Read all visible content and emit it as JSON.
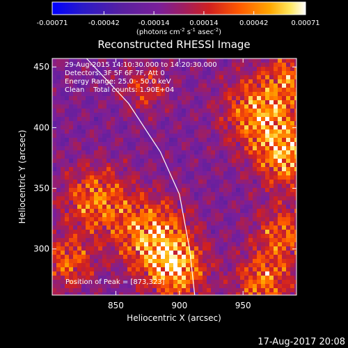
{
  "chart_data": {
    "type": "heatmap",
    "title": "Reconstructed RHESSI Image",
    "xlabel": "Heliocentric X (arcsec)",
    "ylabel": "Heliocentric Y (arcsec)",
    "xlim": [
      800,
      992
    ],
    "ylim": [
      262,
      457
    ],
    "x_ticks": [
      850,
      900,
      950
    ],
    "y_ticks": [
      300,
      350,
      400,
      450
    ],
    "colorbar": {
      "min": -0.00071,
      "max": 0.00071,
      "tick_values": [
        -0.00071,
        -0.00042,
        -0.00014,
        0.00014,
        0.00042,
        0.00071
      ],
      "tick_labels": [
        "-0.00071",
        "-0.00042",
        "-0.00014",
        "0.00014",
        "0.00042",
        "0.00071"
      ],
      "units_label": "(photons cm",
      "units_exp1": "-2",
      "units_mid": " s",
      "units_exp2": "-1",
      "units_mid2": " asec",
      "units_exp3": "-2",
      "units_end": ")",
      "colors": [
        "#0000ff",
        "#3a1aa8",
        "#5a20a0",
        "#7a1f9a",
        "#b01e40",
        "#e02010",
        "#ff6a00",
        "#ffb000",
        "#ffe860",
        "#ffffff"
      ]
    },
    "annotations": [
      "29-Aug-2015 14:10:30.000 to 14:20:30.000",
      "Detectors: 3F 5F 6F 7F, Att 0",
      "Energy Range: 25.0 - 50.0 keV",
      "Clean    Total counts: 1.90E+04"
    ],
    "peak_text": "Position of Peak = [873,323]",
    "peak": [
      873,
      323
    ],
    "limb_curve": [
      [
        827,
        457
      ],
      [
        860,
        420
      ],
      [
        885,
        380
      ],
      [
        900,
        345
      ],
      [
        908,
        300
      ],
      [
        912,
        262
      ]
    ]
  },
  "footer": {
    "timestamp": "17-Aug-2017 20:08"
  }
}
